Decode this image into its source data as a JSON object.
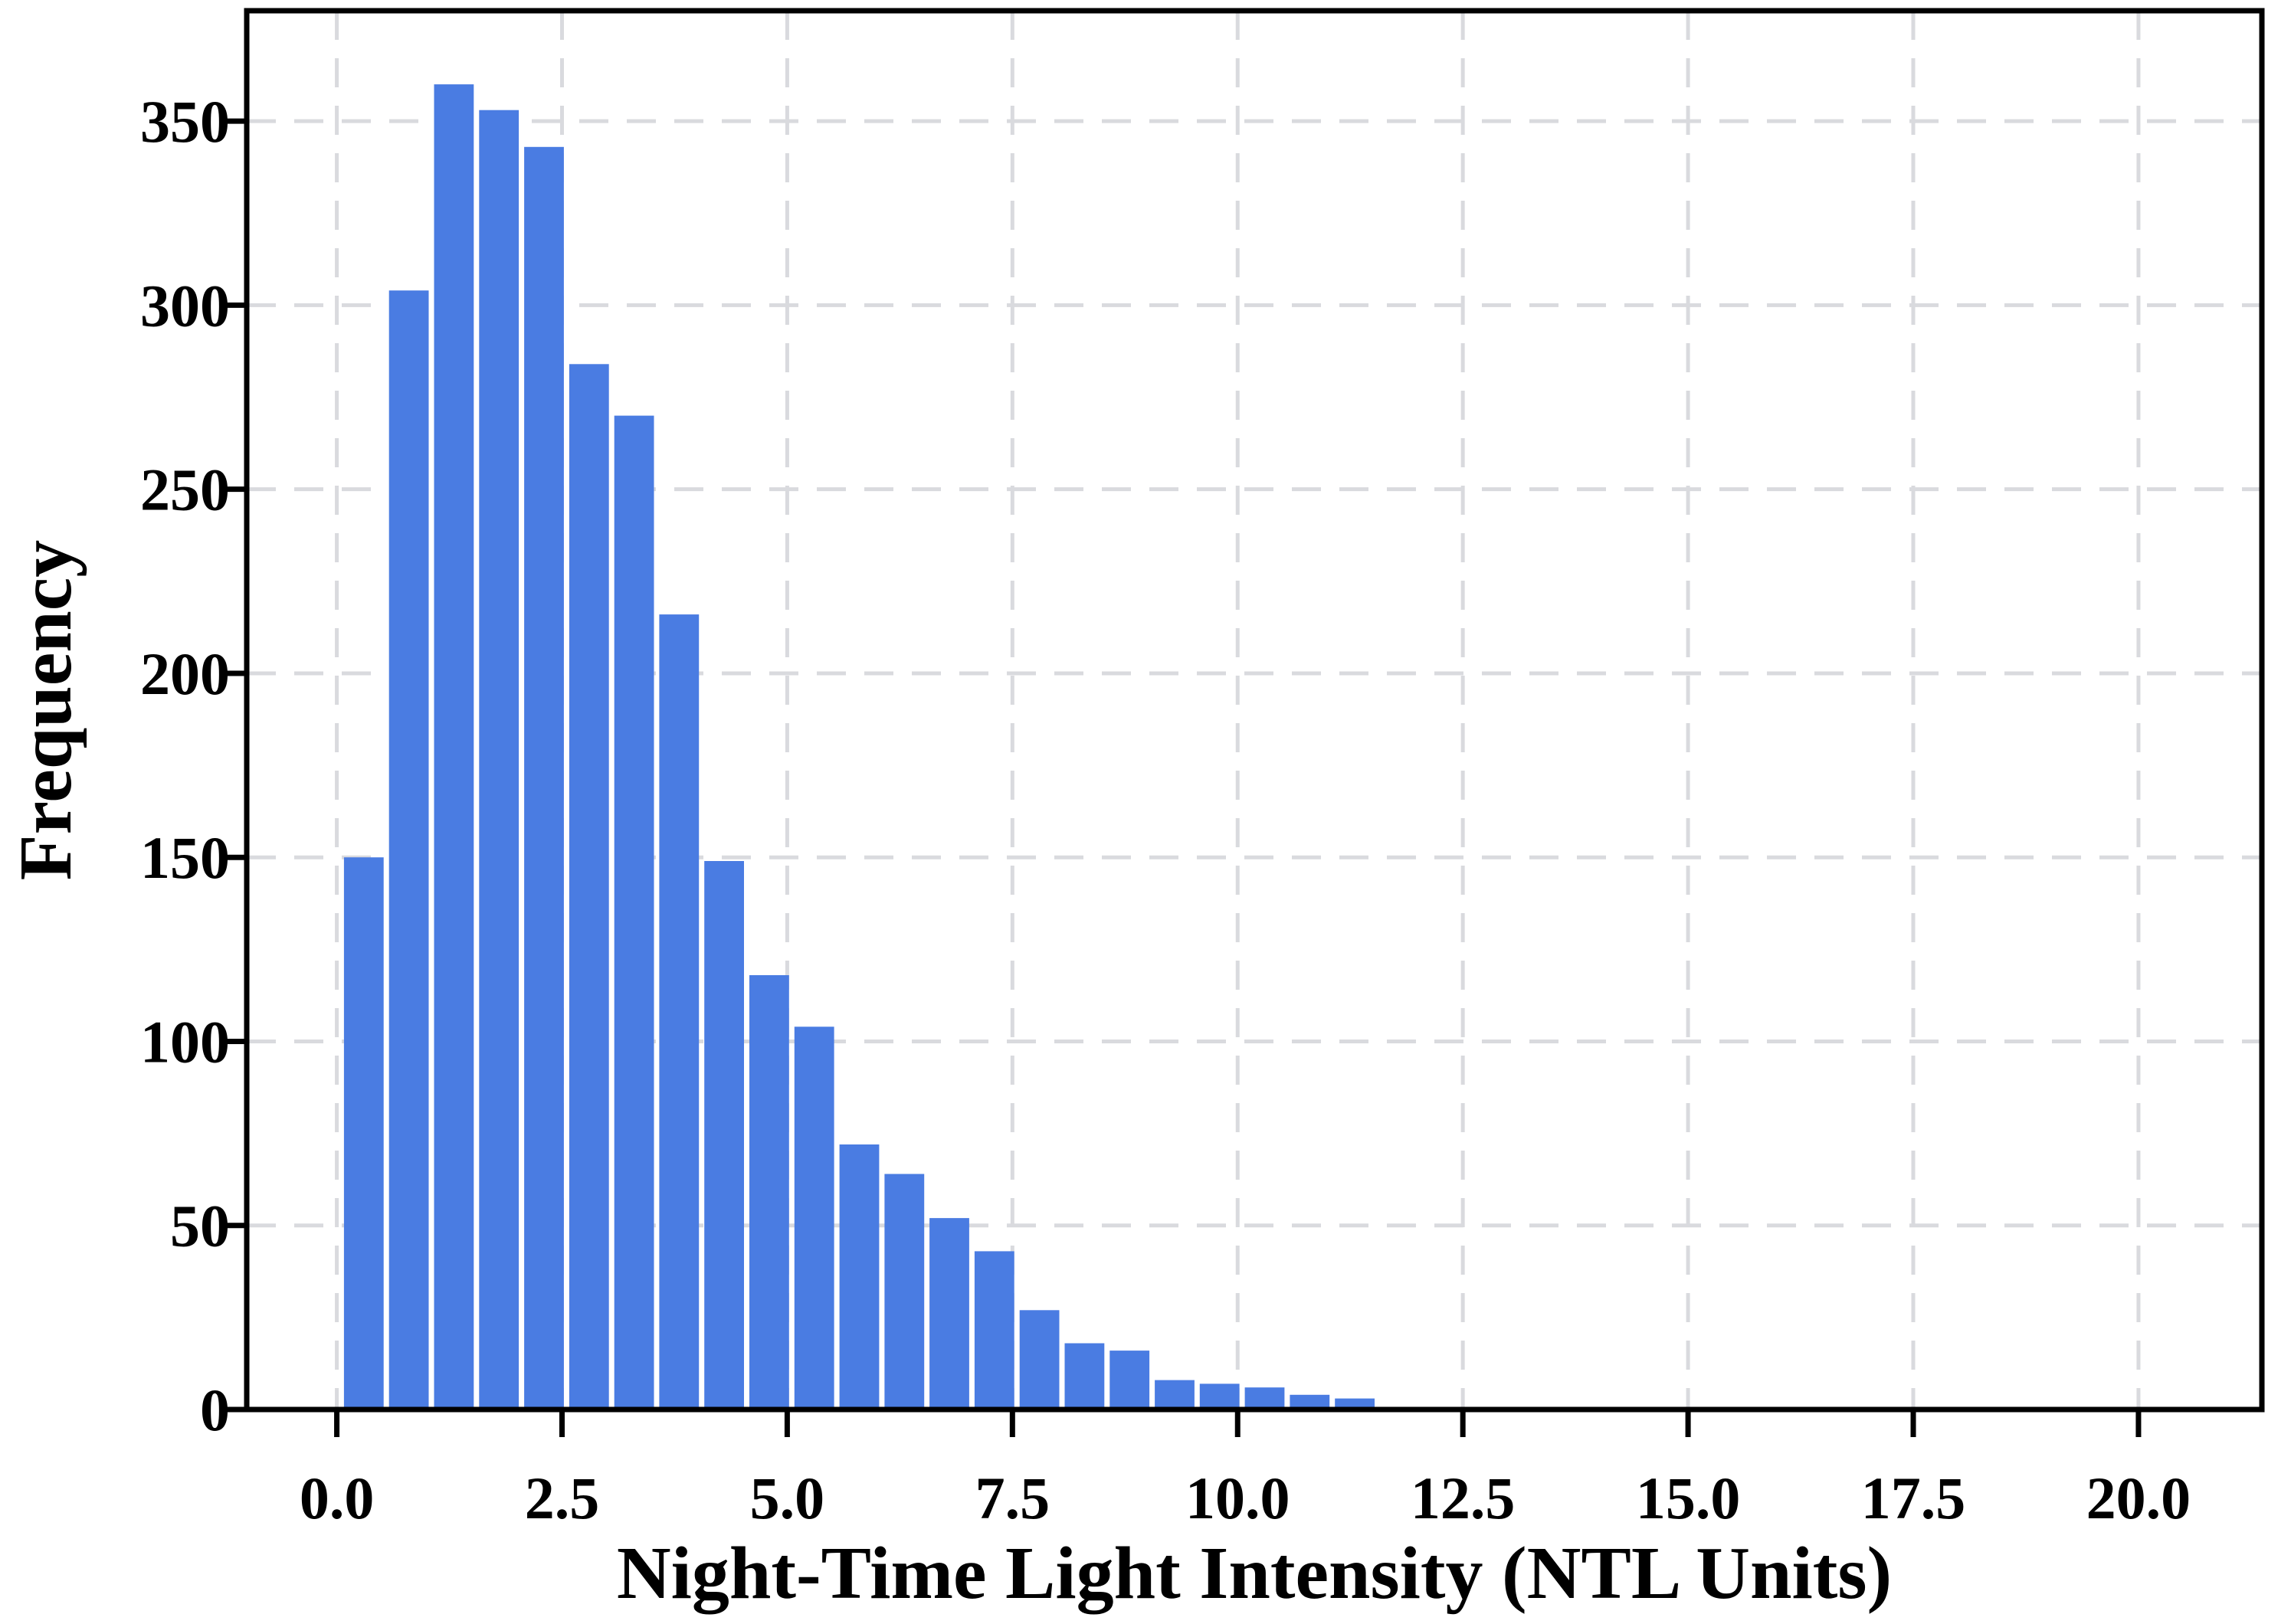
{
  "figure": {
    "background_color": "#ffffff",
    "type": "histogram"
  },
  "chart_data": {
    "type": "bar",
    "title": "",
    "xlabel": "Night-Time Light Intensity (NTL Units)",
    "ylabel": "Frequency",
    "bin_start": 0.05,
    "bin_width": 0.5,
    "frequencies": [
      150,
      304,
      360,
      353,
      343,
      284,
      270,
      216,
      149,
      118,
      104,
      72,
      64,
      52,
      43,
      27,
      18,
      16,
      8,
      7,
      6,
      4,
      3
    ],
    "bin_centers": [
      0.3,
      0.8,
      1.3,
      1.8,
      2.3,
      2.8,
      3.3,
      3.8,
      4.3,
      4.8,
      5.3,
      5.8,
      6.3,
      6.8,
      7.3,
      7.8,
      8.3,
      8.8,
      9.3,
      9.8,
      10.3,
      10.8,
      11.3
    ],
    "x_ticks": [
      0.0,
      2.5,
      5.0,
      7.5,
      10.0,
      12.5,
      15.0,
      17.5,
      20.0
    ],
    "x_tick_labels": [
      "0.0",
      "2.5",
      "5.0",
      "7.5",
      "10.0",
      "12.5",
      "15.0",
      "17.5",
      "20.0"
    ],
    "y_ticks": [
      0,
      50,
      100,
      150,
      200,
      250,
      300,
      350
    ],
    "y_tick_labels": [
      "0",
      "50",
      "100",
      "150",
      "200",
      "250",
      "300",
      "350"
    ],
    "xlim": [
      -1.0,
      21.37
    ],
    "ylim": [
      0,
      380
    ],
    "grid": true,
    "legend": "none",
    "bar_color": "#4a7ce2",
    "bar_edge_color": "#ffffff",
    "grid_color": "#d9dade",
    "axis_color": "#000000",
    "tick_label_color": "#000000"
  }
}
